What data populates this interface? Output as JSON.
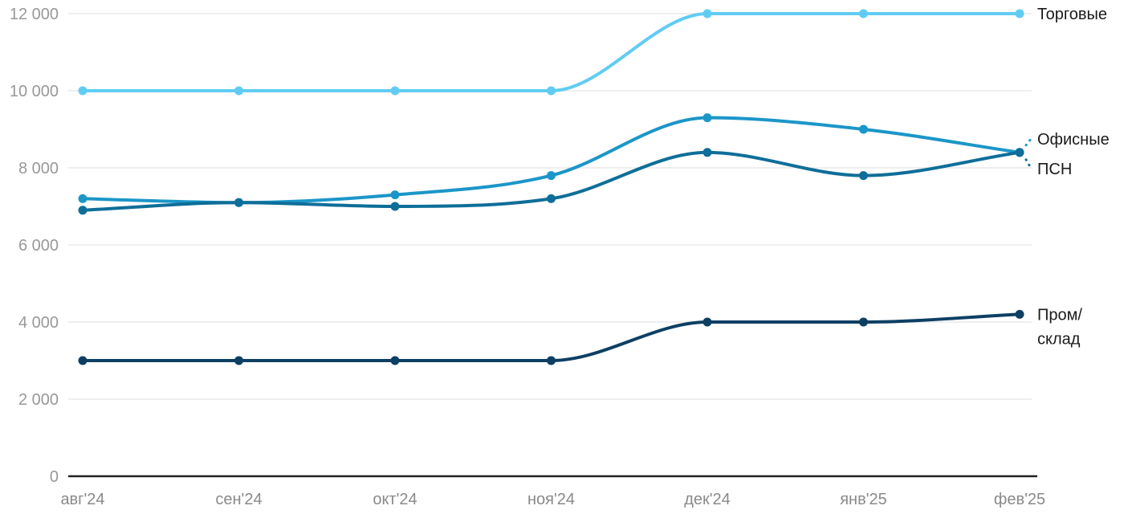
{
  "chart_data": {
    "type": "line",
    "title": "",
    "xlabel": "",
    "ylabel": "",
    "categories": [
      "авг'24",
      "сен'24",
      "окт'24",
      "ноя'24",
      "дек'24",
      "янв'25",
      "фев'25"
    ],
    "series": [
      {
        "name": "Торговые",
        "key": "torgovye",
        "color": "#61ccf3",
        "values": [
          10000,
          10000,
          10000,
          10000,
          12000,
          12000,
          12000
        ],
        "label_lines": [
          "Торговые"
        ]
      },
      {
        "name": "Офисные",
        "key": "ofisnye",
        "color": "#1b96c8",
        "values": [
          7200,
          7100,
          7300,
          7800,
          9300,
          9000,
          8400
        ],
        "label_lines": [
          "Офисные"
        ]
      },
      {
        "name": "ПСН",
        "key": "psn",
        "color": "#0e6e99",
        "values": [
          6900,
          7100,
          7000,
          7200,
          8400,
          7800,
          8400
        ],
        "label_lines": [
          "ПСН"
        ]
      },
      {
        "name": "Пром/склад",
        "key": "prom-sklad",
        "color": "#0d3f63",
        "values": [
          3000,
          3000,
          3000,
          3000,
          4000,
          4000,
          4200
        ],
        "label_lines": [
          "Пром/",
          "склад"
        ]
      }
    ],
    "ylim": [
      0,
      12000
    ],
    "y_ticks": [
      0,
      2000,
      4000,
      6000,
      8000,
      10000,
      12000
    ],
    "y_tick_labels": [
      "0",
      "2 000",
      "4 000",
      "6 000",
      "8 000",
      "10 000",
      "12 000"
    ],
    "grid": true,
    "legend_position": "end-of-line-labels-right",
    "line_style": "smooth-with-point-markers",
    "colors": {
      "grid": "#e8e8e8",
      "axis": "#222222",
      "y_tick_text": "#989898",
      "x_tick_text": "#8a8a8a",
      "label_text": "#1b1b1b",
      "background": "#ffffff"
    }
  }
}
